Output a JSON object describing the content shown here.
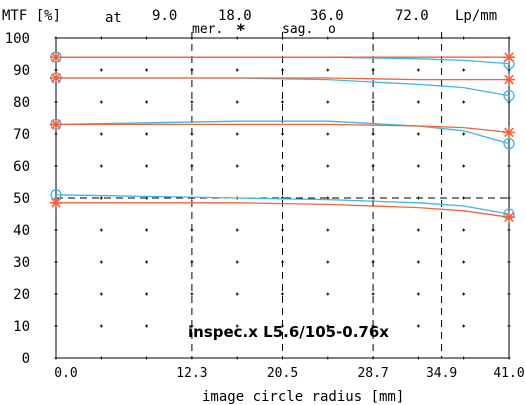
{
  "header": {
    "mtf_label": "MTF [%]",
    "at_label": "at",
    "freqs": [
      "9.0",
      "18.0",
      "36.0",
      "72.0"
    ],
    "unit": "Lp/mm",
    "mer_label": "mer.",
    "mer_marker": "*",
    "sag_label": "sag.",
    "sag_marker": "o"
  },
  "watermark": "inspec.x L5.6/105-0.76x",
  "chart_data": {
    "type": "line",
    "xlabel": "image circle radius [mm]",
    "ylabel": "MTF [%]",
    "xlim": [
      0,
      41.0
    ],
    "ylim": [
      0,
      100
    ],
    "x_ticks": [
      "0.0",
      "12.3",
      "20.5",
      "28.7",
      "34.9",
      "41.0"
    ],
    "y_ticks": [
      "0",
      "10",
      "20",
      "30",
      "40",
      "50",
      "60",
      "70",
      "80",
      "90",
      "100"
    ],
    "dashed_verticals": [
      12.3,
      20.5,
      28.7,
      34.9
    ],
    "dashed_horizontal": 50,
    "grid": "dotted",
    "colors": {
      "sagittal": "#3fb6e8",
      "meridional": "#f4623a"
    },
    "x": [
      0,
      8.2,
      16.4,
      24.6,
      32.8,
      36.9,
      41.0
    ],
    "series": [
      {
        "frequency": "9.0",
        "kind": "sag",
        "values": [
          94.0,
          94.0,
          94.0,
          94.0,
          93.5,
          93.0,
          92.0
        ]
      },
      {
        "frequency": "9.0",
        "kind": "mer",
        "values": [
          94.0,
          94.0,
          94.0,
          94.0,
          94.0,
          94.0,
          94.0
        ]
      },
      {
        "frequency": "18.0",
        "kind": "sag",
        "values": [
          87.5,
          87.5,
          87.5,
          87.0,
          85.5,
          84.5,
          82.0
        ]
      },
      {
        "frequency": "18.0",
        "kind": "mer",
        "values": [
          87.5,
          87.5,
          87.5,
          87.5,
          87.0,
          87.0,
          87.0
        ]
      },
      {
        "frequency": "36.0",
        "kind": "sag",
        "values": [
          73.0,
          73.5,
          74.0,
          74.0,
          72.5,
          71.0,
          67.0
        ]
      },
      {
        "frequency": "36.0",
        "kind": "mer",
        "values": [
          73.0,
          73.0,
          73.0,
          73.0,
          72.5,
          72.0,
          70.5
        ]
      },
      {
        "frequency": "72.0",
        "kind": "sag",
        "values": [
          51.0,
          50.5,
          50.0,
          49.5,
          48.5,
          47.5,
          45.0
        ]
      },
      {
        "frequency": "72.0",
        "kind": "mer",
        "values": [
          48.5,
          48.5,
          48.5,
          48.0,
          47.0,
          46.0,
          44.0
        ]
      }
    ]
  }
}
